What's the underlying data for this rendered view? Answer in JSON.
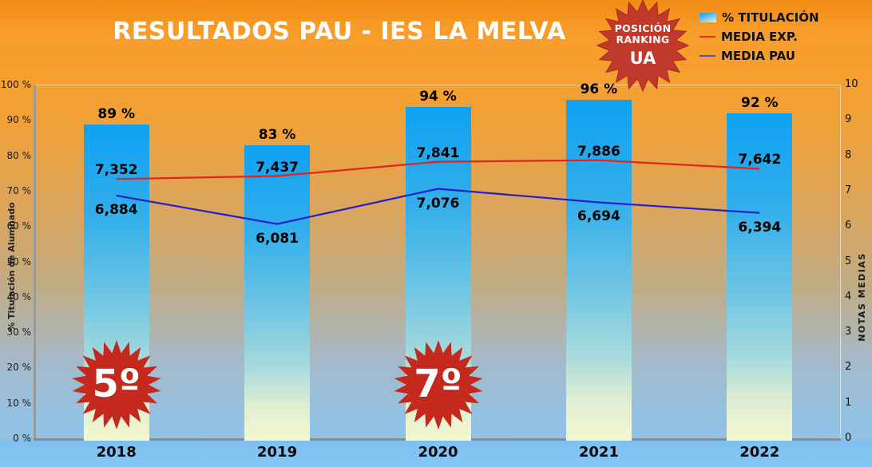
{
  "header": {
    "title": "RESULTADOS PAU - IES LA MELVA"
  },
  "legend": {
    "position": "top-right",
    "items": [
      {
        "label": "% TITULACIÓN",
        "marker": "bar-gradient-swatch"
      },
      {
        "label": "MEDIA EXP.",
        "marker": "red-line"
      },
      {
        "label": "MEDIA PAU",
        "marker": "blue-line"
      }
    ]
  },
  "badges": {
    "ranking": {
      "line1": "POSICIÓN",
      "line2": "RANKING",
      "line3": "UA",
      "color": "#C0392B"
    }
  },
  "colors": {
    "background_top": "#F18C14",
    "background_bottom": "#86C6F5",
    "bar_top": "#0FA1F3",
    "bar_bottom": "#F5F7CF",
    "media_exp_line": "#E5231B",
    "media_pau_line": "#241FCB",
    "badge_red": "#C5281D",
    "axis_line": "#9A9A9A",
    "title_text": "#FFFFFF"
  },
  "chart_data": {
    "type": "combo bar+line",
    "categories": [
      "2018",
      "2019",
      "2020",
      "2021",
      "2022"
    ],
    "series": [
      {
        "name": "% TITULACIÓN",
        "type": "bar",
        "axis": "left",
        "color_top": "#0FA1F3",
        "color_bottom": "#F5F7CF",
        "values": [
          89,
          83,
          94,
          96,
          92
        ],
        "value_labels": [
          "89 %",
          "83 %",
          "94 %",
          "96 %",
          "92 %"
        ]
      },
      {
        "name": "MEDIA EXP.",
        "type": "line",
        "axis": "right",
        "color": "#E5231B",
        "label_side": "above",
        "values": [
          7.352,
          7.437,
          7.841,
          7.886,
          7.642
        ],
        "value_labels": [
          "7,352",
          "7,437",
          "7,841",
          "7,886",
          "7,642"
        ]
      },
      {
        "name": "MEDIA PAU",
        "type": "line",
        "axis": "right",
        "color": "#241FCB",
        "label_side": "below",
        "values": [
          6.884,
          6.081,
          7.076,
          6.694,
          6.394
        ],
        "value_labels": [
          "6,884",
          "6,081",
          "7,076",
          "6,694",
          "6,394"
        ]
      }
    ],
    "left_axis": {
      "label": "% Titulación de Alumnado",
      "min": 0,
      "max": 100,
      "step": 10,
      "tick_suffix": " %"
    },
    "right_axis": {
      "label": "NOTAS MEDIAS",
      "min": 0,
      "max": 10,
      "step": 1,
      "tick_suffix": ""
    },
    "annotations": [
      {
        "category": "2018",
        "text": "5º"
      },
      {
        "category": "2020",
        "text": "7º"
      }
    ],
    "grid": false,
    "legend_position": "top-right"
  }
}
